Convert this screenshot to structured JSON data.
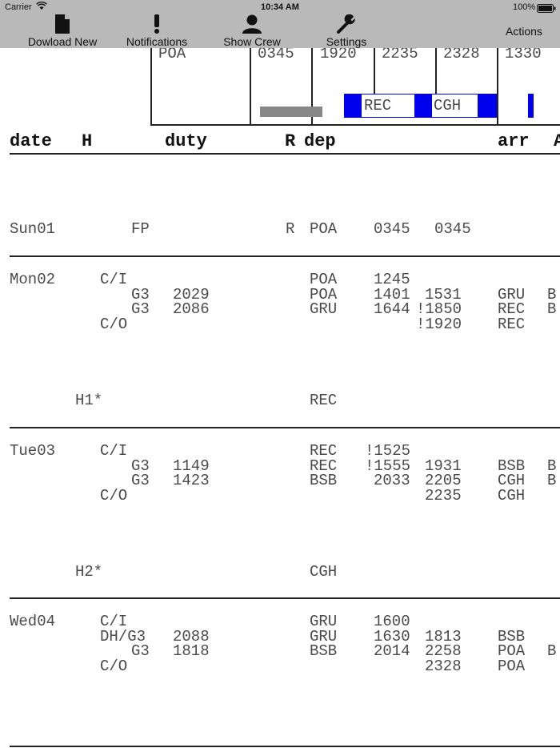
{
  "status": {
    "carrier": "Carrier",
    "time": "10:34 AM",
    "battery": "100%"
  },
  "toolbar": {
    "download_label": "Dowload New",
    "notifications_label": "Notifications",
    "show_crew_label": "Show Crew",
    "settings_label": "Settings",
    "actions_label": "Actions"
  },
  "timeline": {
    "stations": [
      "POA",
      "0345",
      "1920",
      "2235",
      "2328",
      "1330"
    ],
    "legs": [
      "REC",
      "CGH"
    ]
  },
  "columns": {
    "date": "date",
    "h": "H",
    "duty": "duty",
    "r": "R",
    "dep": "dep",
    "arr": "arr",
    "extra": "A"
  },
  "rows": [
    {
      "date": "Sun01",
      "duty": "FP",
      "r": "R",
      "dep": "POA",
      "t1": "0345",
      "t2": "0345"
    },
    {
      "date": "Mon02",
      "lines": [
        [
          "C/I",
          "",
          "POA",
          "1245",
          "",
          "",
          ""
        ],
        [
          "G3",
          "2029",
          "POA",
          "1401",
          "1531",
          "GRU",
          "B"
        ],
        [
          "G3",
          "2086",
          "GRU",
          "1644",
          "!1850",
          "REC",
          "B"
        ],
        [
          "C/O",
          "",
          "",
          "",
          "!1920",
          "REC",
          ""
        ]
      ],
      "hotel": "H1*",
      "hotel_loc": "REC"
    },
    {
      "date": "Tue03",
      "lines": [
        [
          "C/I",
          "",
          "REC",
          "!1525",
          "",
          "",
          ""
        ],
        [
          "G3",
          "1149",
          "REC",
          "!1555",
          "1931",
          "BSB",
          "B"
        ],
        [
          "G3",
          "1423",
          "BSB",
          "2033",
          "2205",
          "CGH",
          "B"
        ],
        [
          "C/O",
          "",
          "",
          "",
          "2235",
          "CGH",
          ""
        ]
      ],
      "hotel": "H2*",
      "hotel_loc": "CGH"
    },
    {
      "date": "Wed04",
      "lines": [
        [
          "C/I",
          "",
          "GRU",
          "1600",
          "",
          "",
          ""
        ],
        [
          "DH/G3",
          "2088",
          "GRU",
          "1630",
          "1813",
          "BSB",
          ""
        ],
        [
          "G3",
          "1818",
          "BSB",
          "2014",
          "2258",
          "POA",
          "B"
        ],
        [
          "C/O",
          "",
          "",
          "",
          "2328",
          "POA",
          ""
        ]
      ]
    }
  ],
  "colors": {
    "toolbar_bg": "#b9b9b9",
    "leg_blue": "#0000ee",
    "bar_gray": "#888888"
  }
}
